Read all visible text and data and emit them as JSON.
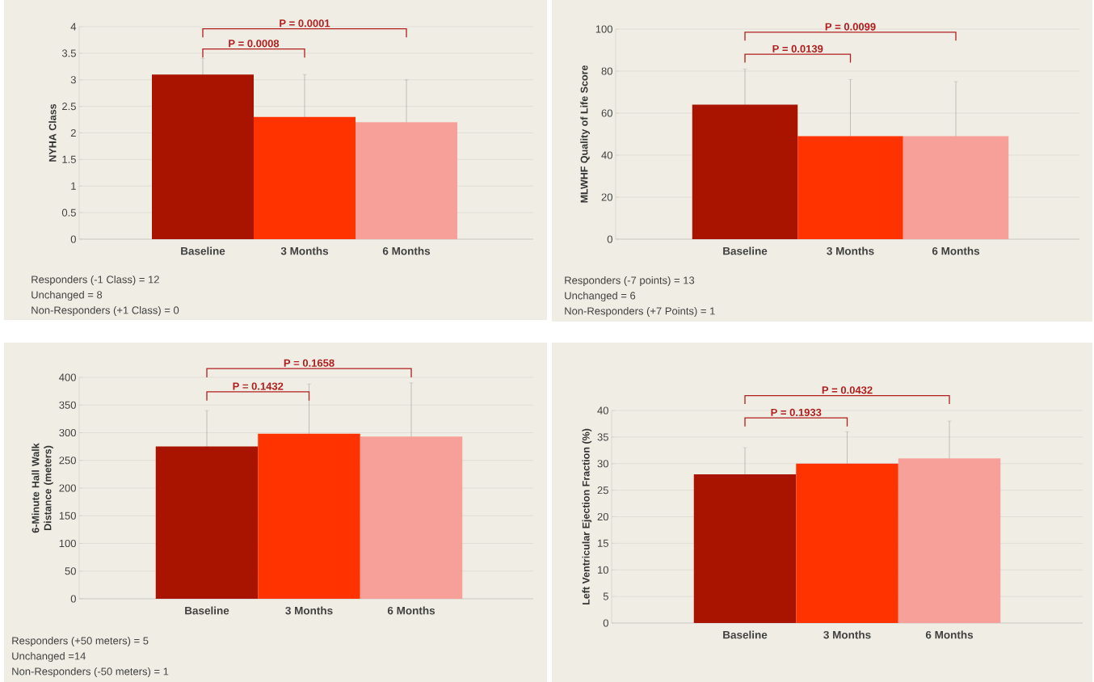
{
  "chart_data": [
    {
      "type": "bar",
      "ylabel": "NYHA Class",
      "categories": [
        "Baseline",
        "3 Months",
        "6 Months"
      ],
      "values": [
        3.1,
        2.3,
        2.2
      ],
      "errors": [
        0.3,
        0.8,
        0.8
      ],
      "colors": [
        "#a81400",
        "#ff3300",
        "#f7a09a"
      ],
      "ylim": [
        0,
        4
      ],
      "yticks": [
        0,
        0.5,
        1,
        1.5,
        2,
        2.5,
        3,
        3.5,
        4
      ],
      "grid": "y",
      "annotations": [
        "P = 0.0008",
        "P = 0.0001",
        "Responders (-1 Class) = 12",
        "Unchanged = 8",
        "Non-Responders (+1 Class) = 0"
      ]
    },
    {
      "type": "bar",
      "ylabel": "MLWHF Quality of Life Score",
      "categories": [
        "Baseline",
        "3 Months",
        "6 Months"
      ],
      "values": [
        64,
        49,
        49
      ],
      "errors": [
        17,
        27,
        26
      ],
      "colors": [
        "#a81400",
        "#ff3300",
        "#f7a09a"
      ],
      "ylim": [
        0,
        100
      ],
      "yticks": [
        0,
        20,
        40,
        60,
        80,
        100
      ],
      "grid": "y",
      "annotations": [
        "P = 0.0139",
        "P = 0.0099",
        "Responders (-7 points) = 13",
        "Unchanged = 6",
        "Non-Responders (+7 Points) = 1"
      ]
    },
    {
      "type": "bar",
      "ylabel": "6-Minute Hall Walk Distance (meters)",
      "categories": [
        "Baseline",
        "3 Months",
        "6 Months"
      ],
      "values": [
        275,
        298,
        293
      ],
      "errors": [
        65,
        90,
        97
      ],
      "colors": [
        "#a81400",
        "#ff3300",
        "#f7a09a"
      ],
      "ylim": [
        0,
        400
      ],
      "yticks": [
        0,
        50,
        100,
        150,
        200,
        250,
        300,
        350,
        400
      ],
      "grid": "y",
      "annotations": [
        "P = 0.1432",
        "P = 0.1658",
        "Responders (+50 meters) = 5",
        "Unchanged =14",
        "Non-Responders (-50 meters) = 1"
      ]
    },
    {
      "type": "bar",
      "ylabel": "Left Ventricular Ejection Fraction (%)",
      "categories": [
        "Baseline",
        "3 Months",
        "6 Months"
      ],
      "values": [
        28,
        30,
        31
      ],
      "errors": [
        5,
        6,
        7
      ],
      "colors": [
        "#a81400",
        "#ff3300",
        "#f7a09a"
      ],
      "ylim": [
        0,
        40
      ],
      "yticks": [
        0,
        5,
        10,
        15,
        20,
        25,
        30,
        35,
        40
      ],
      "grid": "y",
      "annotations": [
        "P = 0.1933",
        "P = 0.0432"
      ]
    }
  ]
}
